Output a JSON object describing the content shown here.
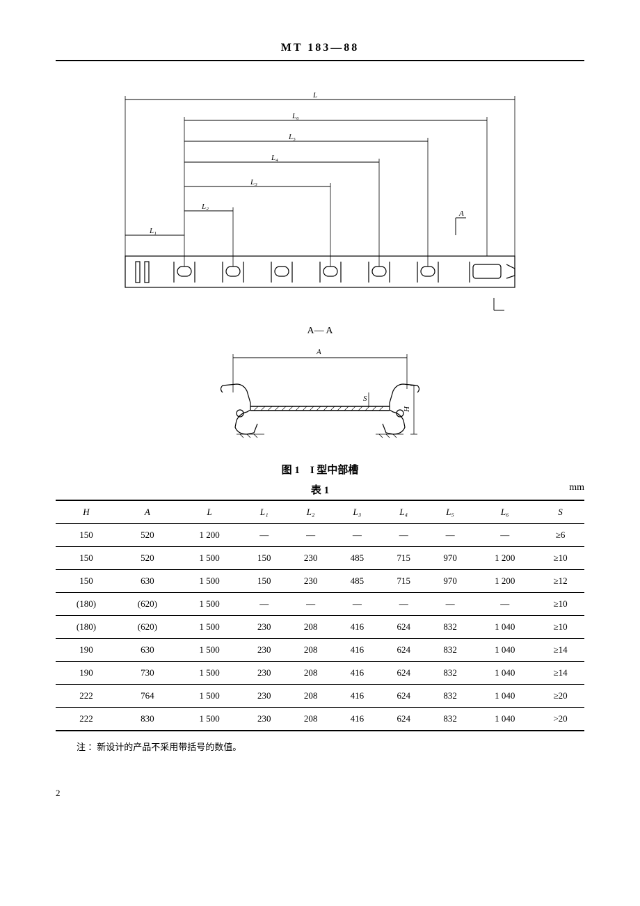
{
  "header": "MT 183—88",
  "diagram_top": {
    "labels": {
      "L": "L",
      "L6": "L₆",
      "L5": "L₅",
      "L4": "L₄",
      "L3": "L₃",
      "L2": "L₂",
      "L1": "L₁",
      "A_top": "A",
      "A_bottom": "A"
    }
  },
  "section_label": "A— A",
  "diagram_section": {
    "labels": {
      "A": "A",
      "S": "S",
      "H": "H"
    }
  },
  "figure_caption": "图 1　I 型中部槽",
  "table": {
    "title": "表 1",
    "unit": "mm",
    "columns": [
      "H",
      "A",
      "L",
      "L₁",
      "L₂",
      "L₃",
      "L₄",
      "L₅",
      "L₆",
      "S"
    ],
    "rows": [
      [
        "150",
        "520",
        "1 200",
        "—",
        "—",
        "—",
        "—",
        "—",
        "—",
        "≥6"
      ],
      [
        "150",
        "520",
        "1 500",
        "150",
        "230",
        "485",
        "715",
        "970",
        "1 200",
        "≥10"
      ],
      [
        "150",
        "630",
        "1 500",
        "150",
        "230",
        "485",
        "715",
        "970",
        "1 200",
        "≥12"
      ],
      [
        "(180)",
        "(620)",
        "1 500",
        "—",
        "—",
        "—",
        "—",
        "—",
        "—",
        "≥10"
      ],
      [
        "(180)",
        "(620)",
        "1 500",
        "230",
        "208",
        "416",
        "624",
        "832",
        "1 040",
        "≥10"
      ],
      [
        "190",
        "630",
        "1 500",
        "230",
        "208",
        "416",
        "624",
        "832",
        "1 040",
        "≥14"
      ],
      [
        "190",
        "730",
        "1 500",
        "230",
        "208",
        "416",
        "624",
        "832",
        "1 040",
        "≥14"
      ],
      [
        "222",
        "764",
        "1 500",
        "230",
        "208",
        "416",
        "624",
        "832",
        "1 040",
        "≥20"
      ],
      [
        "222",
        "830",
        "1 500",
        "230",
        "208",
        "416",
        "624",
        "832",
        "1 040",
        ">20"
      ]
    ]
  },
  "footnote": "注 ：新设计的产品不采用带括号的数值。",
  "page_number": "2"
}
